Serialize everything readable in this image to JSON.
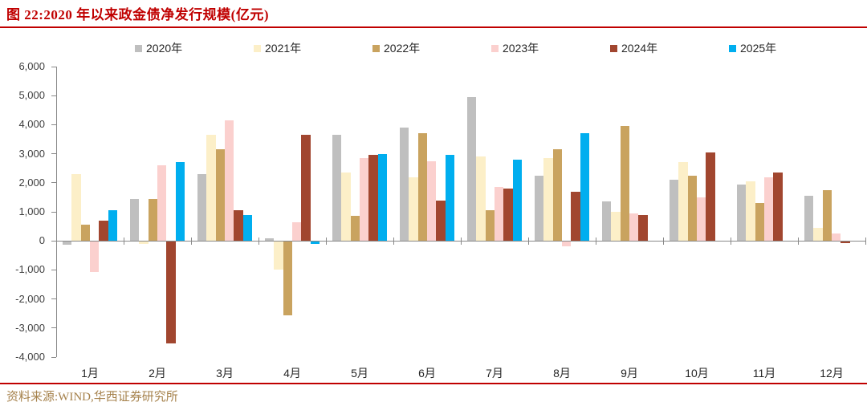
{
  "figure": {
    "title": "图 22:2020 年以来政金债净发行规模(亿元)",
    "source": "资料来源:WIND,华西证券研究所",
    "accent_red": "#c00000",
    "source_text_color": "#a6824c"
  },
  "chart_data": {
    "type": "bar",
    "title": "2020 年以来政金债净发行规模(亿元)",
    "unit": "亿元",
    "legend_position": "top",
    "grid": false,
    "ylim": [
      -4000,
      6000
    ],
    "ytick_step": 1000,
    "axis_color": "#898989",
    "categories": [
      "1月",
      "2月",
      "3月",
      "4月",
      "5月",
      "6月",
      "7月",
      "8月",
      "9月",
      "10月",
      "11月",
      "12月"
    ],
    "series": [
      {
        "name": "2020年",
        "color": "#bfbfbf",
        "values": [
          -100,
          1450,
          2300,
          100,
          3650,
          3900,
          4950,
          2250,
          1350,
          2100,
          1950,
          1550
        ]
      },
      {
        "name": "2021年",
        "color": "#fcefc8",
        "values": [
          2300,
          -80,
          3650,
          -950,
          2350,
          2200,
          2900,
          2850,
          1000,
          2700,
          2050,
          450
        ]
      },
      {
        "name": "2022年",
        "color": "#c9a35f",
        "values": [
          550,
          1450,
          3150,
          -2550,
          850,
          3700,
          1050,
          3150,
          3950,
          2250,
          1300,
          1750
        ]
      },
      {
        "name": "2023年",
        "color": "#fbd0ce",
        "values": [
          -1050,
          2600,
          4150,
          650,
          2850,
          2750,
          1850,
          -150,
          950,
          1500,
          2200,
          250
        ]
      },
      {
        "name": "2024年",
        "color": "#a1462f",
        "values": [
          700,
          -3500,
          1050,
          3650,
          2950,
          1400,
          1800,
          1700,
          900,
          3050,
          2350,
          -60
        ]
      },
      {
        "name": "2025年",
        "color": "#00aeef",
        "values": [
          1050,
          2700,
          900,
          -80,
          3000,
          2950,
          2800,
          3700,
          null,
          null,
          null,
          null
        ]
      }
    ]
  }
}
